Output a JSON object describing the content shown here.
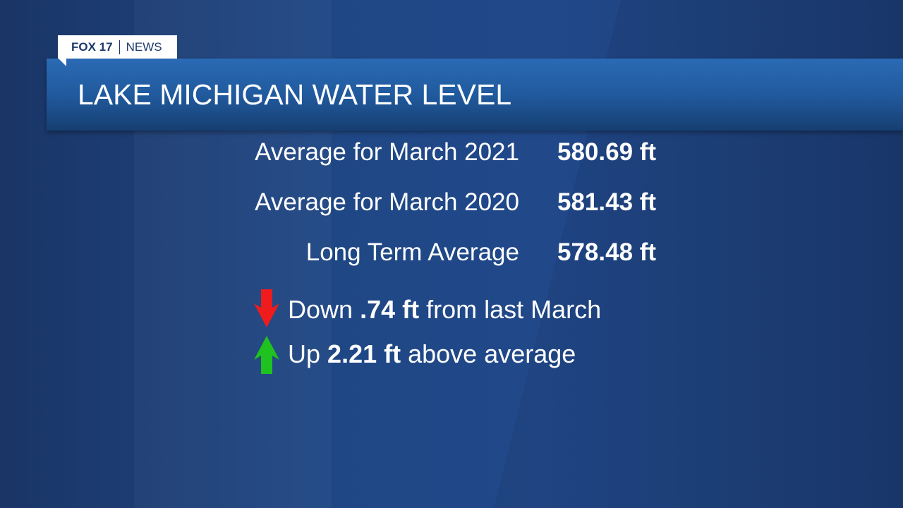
{
  "logo": {
    "brand": "FOX 17",
    "section": "NEWS"
  },
  "title": "LAKE MICHIGAN WATER LEVEL",
  "rows": [
    {
      "label": "Average for March 2021",
      "value": "580.69 ft"
    },
    {
      "label": "Average for March 2020",
      "value": "581.43 ft"
    },
    {
      "label": "Long Term Average",
      "value": "578.48 ft"
    }
  ],
  "changes": [
    {
      "lead": "Down",
      "amount": ".74 ft",
      "rest": "from last March"
    },
    {
      "lead": "Up",
      "amount": "2.21 ft",
      "rest": "above average"
    }
  ]
}
